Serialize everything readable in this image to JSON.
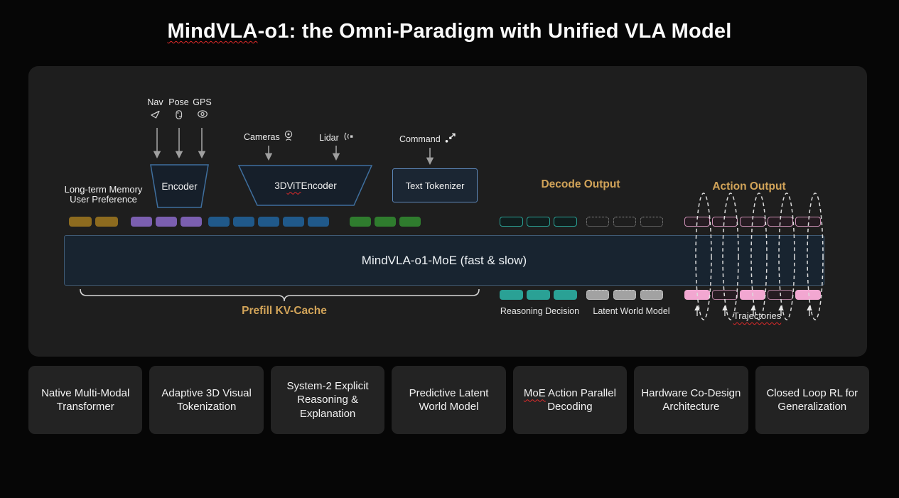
{
  "title": {
    "misspelled": "MindVLA",
    "rest": "-o1: the Omni-Paradigm with Unified VLA Model"
  },
  "diagram": {
    "sensors": {
      "nav": "Nav",
      "pose": "Pose",
      "gps": "GPS",
      "cameras": "Cameras",
      "lidar": "Lidar",
      "command": "Command"
    },
    "memory": {
      "line1": "Long-term Memory",
      "line2": "User Preference"
    },
    "encoder_label": "Encoder",
    "vit": {
      "pre": "3D ",
      "word": "ViT",
      "post": " Encoder"
    },
    "tokenizer_label": "Text Tokenizer",
    "decode_output_label": "Decode Output",
    "action_output_label": "Action Output",
    "moe_label": "MindVLA-o1-MoE (fast & slow)",
    "prefill_label": "Prefill KV-Cache",
    "reasoning_label": "Reasoning Decision",
    "latent_label": "Latent World Model",
    "trajectories_label": "Trajectories",
    "token_groups": {
      "memory": {
        "count": 2,
        "style": "gold"
      },
      "pose": {
        "count": 3,
        "style": "purple"
      },
      "vision": {
        "count": 5,
        "style": "blue"
      },
      "text": {
        "count": 3,
        "style": "green"
      },
      "decode": {
        "count": 3,
        "style": "teal-o"
      },
      "latent": {
        "count": 3,
        "style": "gray-d"
      },
      "action": {
        "count": 5,
        "style": "pink-o"
      },
      "reasoning_out": {
        "count": 3,
        "style": "teal-f"
      },
      "latent_out": {
        "count": 3,
        "style": "gray-f"
      },
      "trajectory_out": {
        "count": 5,
        "style": "pink-alt"
      }
    }
  },
  "features": [
    {
      "text": "Native Multi-Modal Transformer"
    },
    {
      "text": "Adaptive 3D Visual Tokenization"
    },
    {
      "text": "System-2 Explicit Reasoning & Explanation"
    },
    {
      "text": "Predictive Latent World Model"
    },
    {
      "misspelled": "MoE",
      "text": " Action Parallel Decoding"
    },
    {
      "text": "Hardware Co-Design Architecture"
    },
    {
      "text": "Closed Loop RL for Generalization"
    }
  ],
  "colors": {
    "panel": "#1e1e1e",
    "card": "#232323",
    "accent_gold": "#d2a459",
    "token_gold": "#8d6b1f",
    "token_purple": "#7b5fb0",
    "token_blue": "#20598a",
    "token_green": "#2f7c2e",
    "teal": "#2aa195",
    "gray": "#a2a2a2",
    "pink": "#f2a7d1",
    "pink_border": "#cc8fb4",
    "bar_fill": "#182430",
    "bar_border": "#3f5a74",
    "trapezoid_border": "#3f6f9e",
    "tokenizer_border": "#5d89bd",
    "squiggle_red": "#e02a2a"
  }
}
